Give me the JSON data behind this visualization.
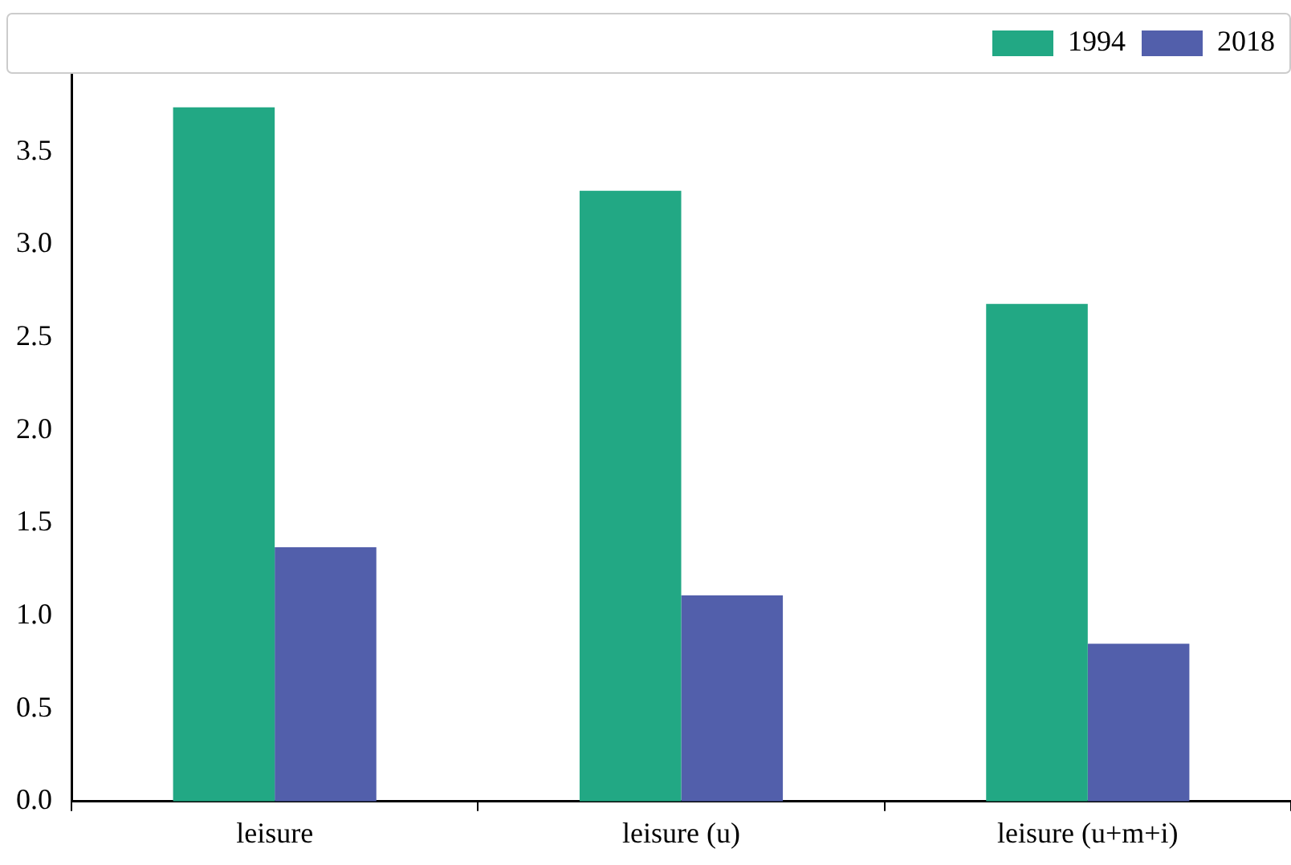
{
  "chart_data": {
    "type": "bar",
    "categories": [
      "leisure",
      "leisure (u)",
      "leisure (u+m+i)"
    ],
    "series": [
      {
        "name": "1994",
        "color": "#22a884",
        "values": [
          3.74,
          3.29,
          2.68
        ]
      },
      {
        "name": "2018",
        "color": "#525fab",
        "values": [
          1.37,
          1.11,
          0.85
        ]
      }
    ],
    "ylim": [
      0,
      3.92
    ],
    "yticks": [
      {
        "value": 0,
        "label": "0.0"
      },
      {
        "value": 0.5,
        "label": "0.5"
      },
      {
        "value": 1,
        "label": "1.0"
      },
      {
        "value": 1.5,
        "label": "1.5"
      },
      {
        "value": 2,
        "label": "2.0"
      },
      {
        "value": 2.5,
        "label": "2.5"
      },
      {
        "value": 3,
        "label": "3.0"
      },
      {
        "value": 3.5,
        "label": "3.5"
      }
    ],
    "grid": false,
    "legend": "top right"
  }
}
